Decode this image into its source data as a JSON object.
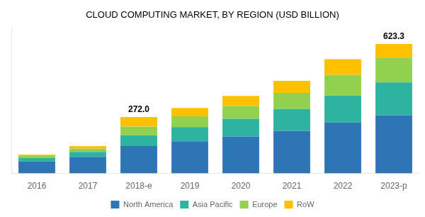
{
  "chart_data": {
    "type": "bar",
    "title": "CLOUD COMPUTING MARKET, BY REGION (USD BILLION)",
    "categories": [
      "2016",
      "2017",
      "2018-e",
      "2019",
      "2020",
      "2021",
      "2022",
      "2023-p"
    ],
    "series": [
      {
        "name": "North America",
        "color": "#2e75b6",
        "values": [
          58,
          80,
          132,
          155,
          178,
          205,
          245,
          280
        ]
      },
      {
        "name": "Asia Pacific",
        "color": "#2db3a0",
        "values": [
          16,
          24,
          52,
          68,
          85,
          105,
          130,
          158
        ]
      },
      {
        "name": "Europe",
        "color": "#92d050",
        "values": [
          10,
          16,
          42,
          52,
          62,
          78,
          100,
          120
        ]
      },
      {
        "name": "RoW",
        "color": "#ffc000",
        "values": [
          7,
          12,
          46,
          40,
          48,
          58,
          75,
          65.3
        ]
      }
    ],
    "annotations": [
      {
        "x": "2018-e",
        "y": 272.0,
        "text": "272.0"
      },
      {
        "x": "2023-p",
        "y": 623.3,
        "text": "623.3"
      }
    ],
    "ylim": [
      0,
      700
    ],
    "stacked": true,
    "grid": false,
    "legend": "bottom",
    "tick_labels": "x"
  }
}
